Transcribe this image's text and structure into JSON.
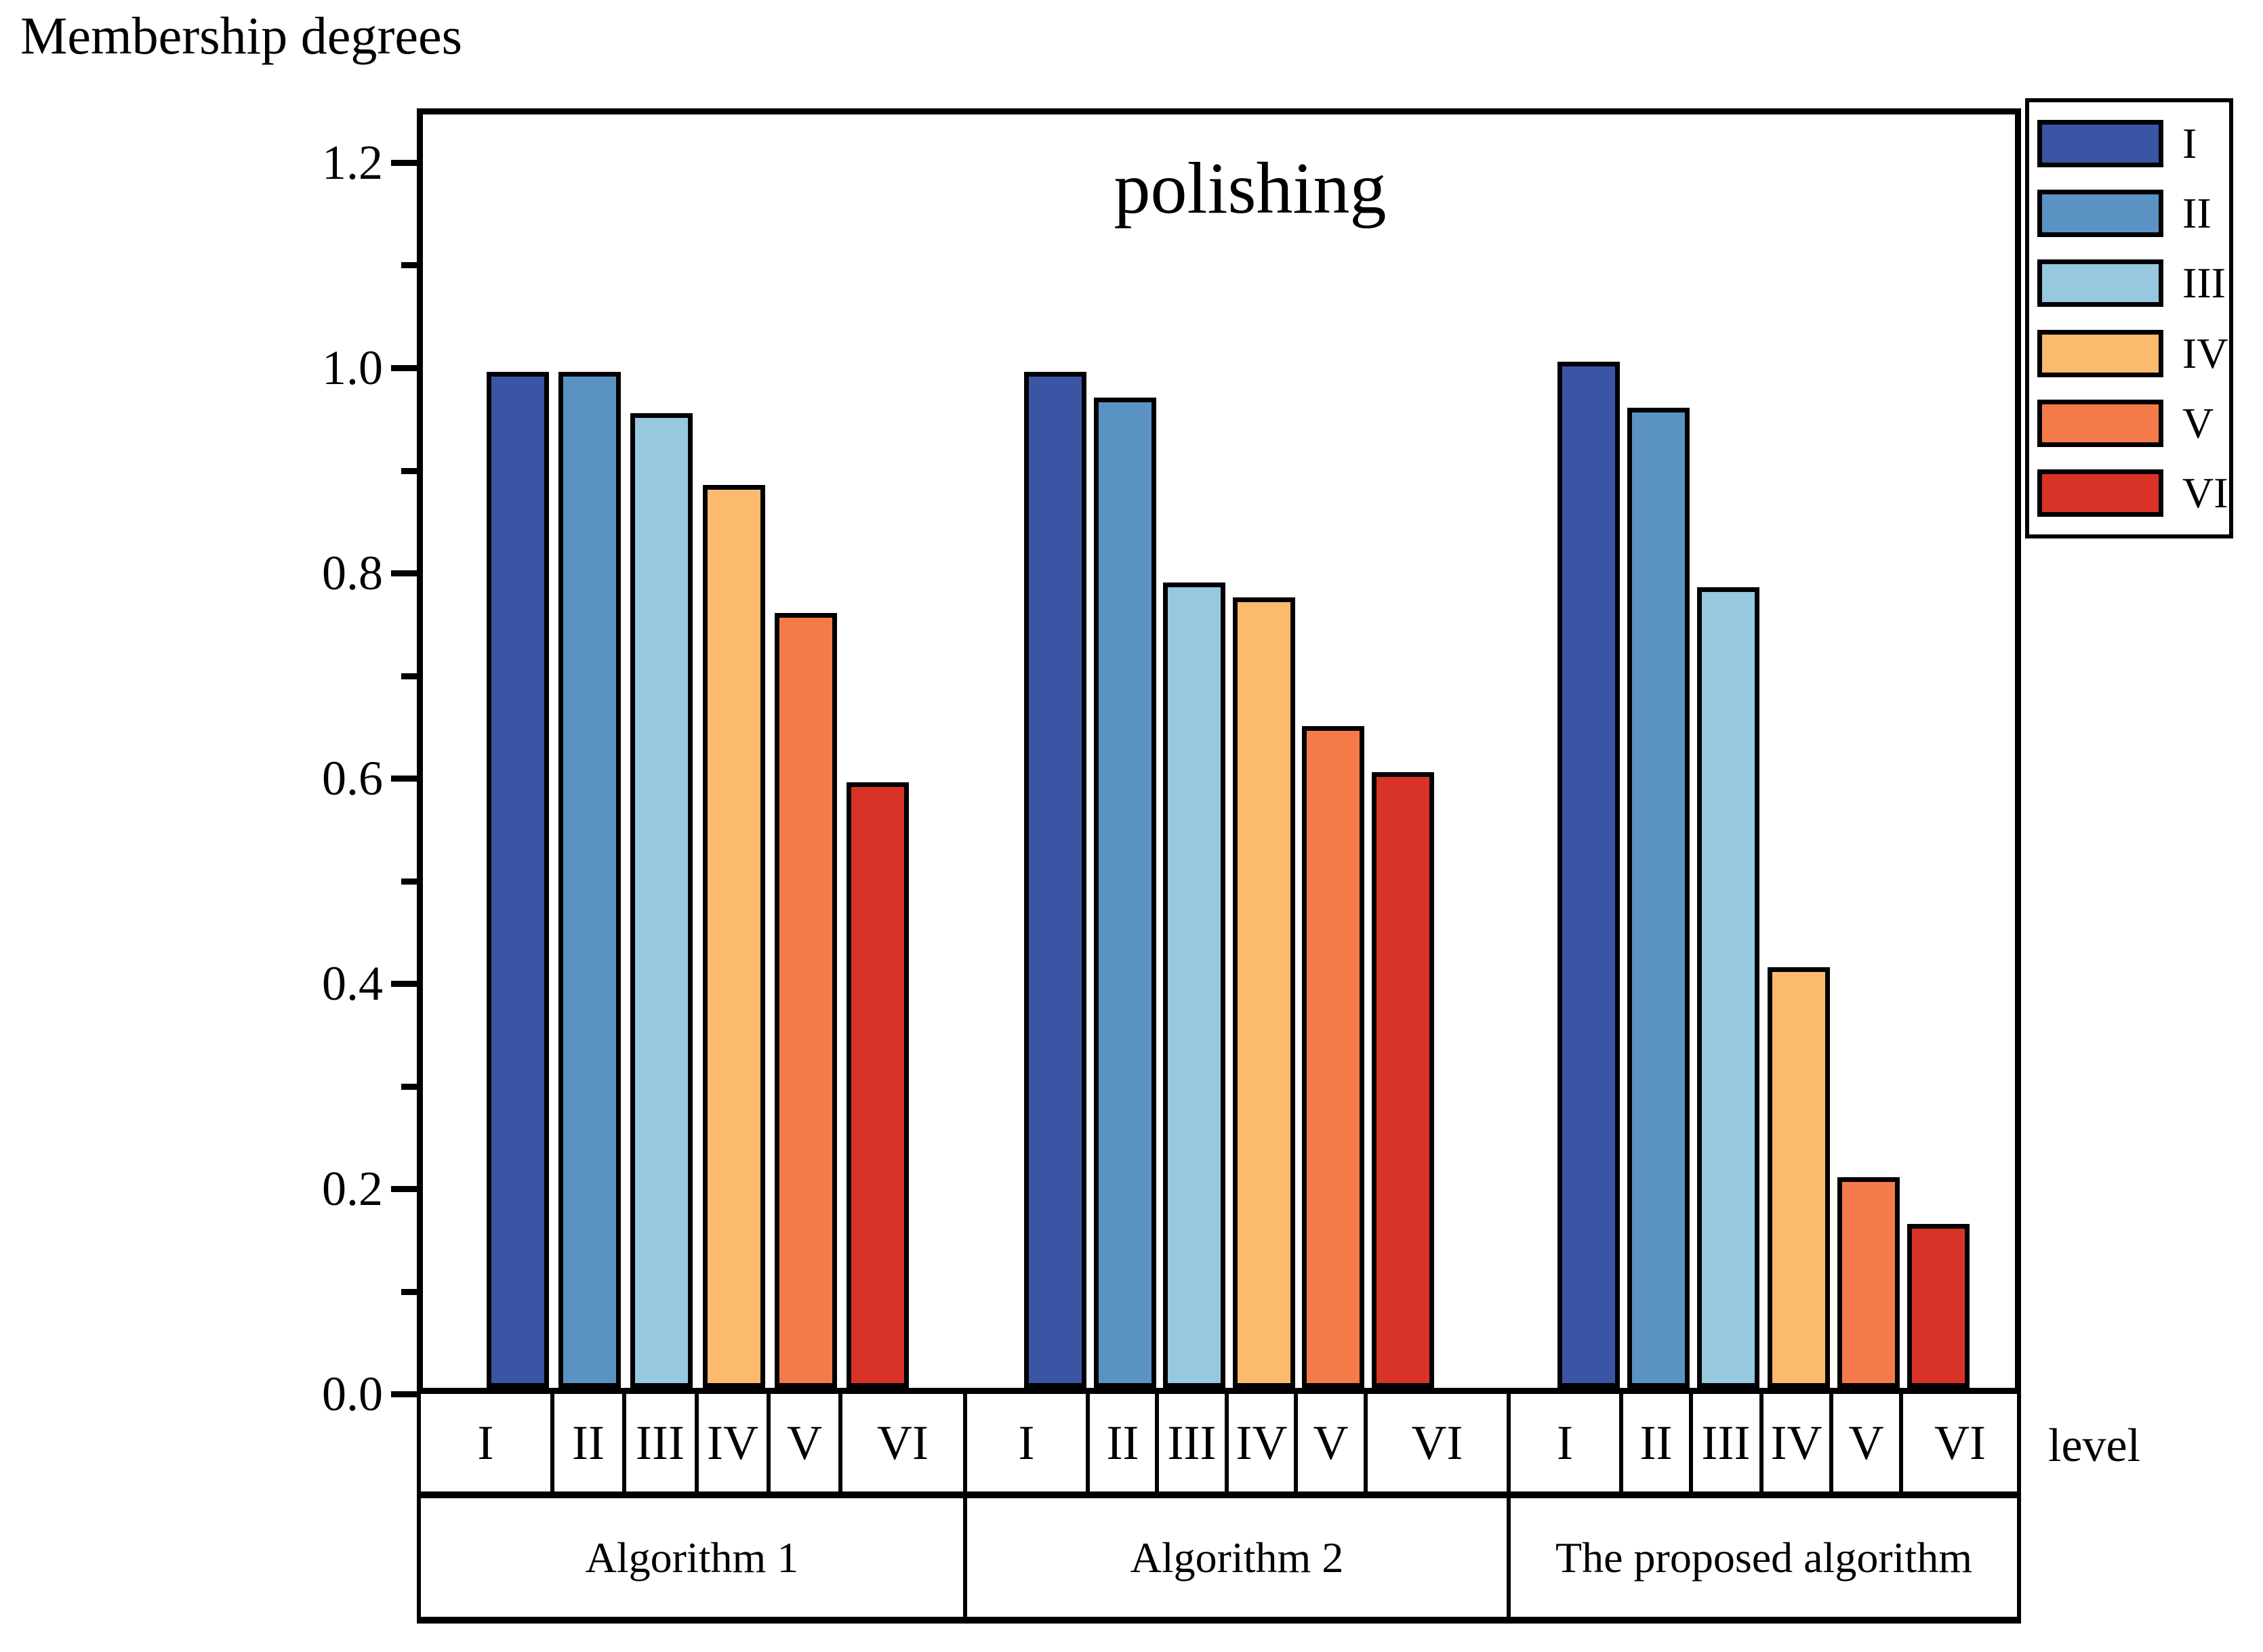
{
  "chart_data": {
    "type": "bar",
    "title": "polishing",
    "ylabel": "Membership degrees",
    "xlabel": "level",
    "categories": [
      "I",
      "II",
      "III",
      "IV",
      "V",
      "VI"
    ],
    "groups": [
      "Algorithm 1",
      "Algorithm 2",
      "The proposed algorithm"
    ],
    "series": [
      {
        "name": "Algorithm 1",
        "values": [
          0.99,
          0.99,
          0.95,
          0.88,
          0.755,
          0.59
        ]
      },
      {
        "name": "Algorithm 2",
        "values": [
          0.99,
          0.965,
          0.785,
          0.77,
          0.645,
          0.6
        ]
      },
      {
        "name": "The proposed algorithm",
        "values": [
          1.0,
          0.955,
          0.78,
          0.41,
          0.205,
          0.16
        ]
      }
    ],
    "colors": [
      "#3B55A5",
      "#5B92C4",
      "#96C8DF",
      "#FBBA6E",
      "#F47B49",
      "#D93327"
    ],
    "legend": {
      "position": "top-right",
      "entries": [
        "I",
        "II",
        "III",
        "IV",
        "V",
        "VI"
      ]
    },
    "ylim": [
      0.0,
      1.25
    ],
    "yticks": [
      0.0,
      0.2,
      0.4,
      0.6,
      0.8,
      1.0,
      1.2
    ],
    "ytick_labels": [
      "0.0",
      "0.2",
      "0.4",
      "0.6",
      "0.8",
      "1.0",
      "1.2"
    ],
    "minor_tick_step": 0.1,
    "grid": false
  }
}
